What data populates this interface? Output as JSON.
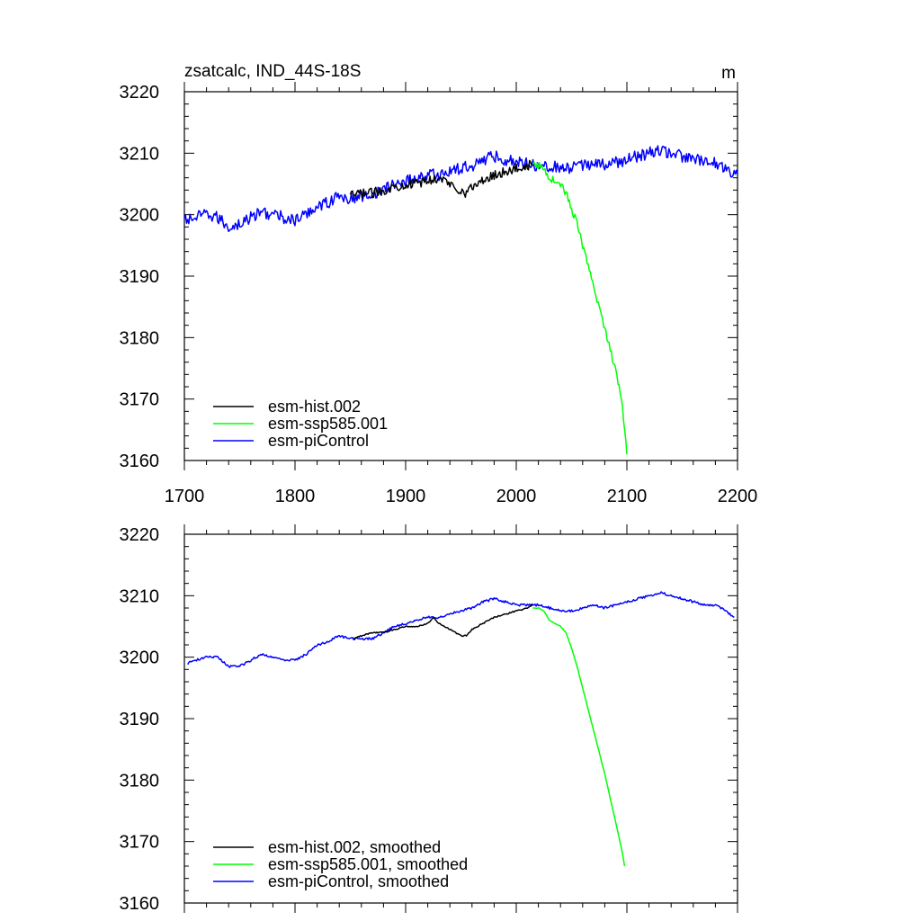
{
  "chart_data": [
    {
      "type": "line",
      "title": "zsatcalc, IND_44S-18S",
      "units": "m",
      "xlim": [
        1700,
        2200
      ],
      "ylim": [
        3160,
        3220
      ],
      "x_ticks": [
        1700,
        1800,
        1900,
        2000,
        2100,
        2200
      ],
      "y_ticks": [
        3160,
        3170,
        3180,
        3190,
        3200,
        3210,
        3220
      ],
      "show_x_tick_labels": true,
      "legend": "bottom-left",
      "grid": false,
      "series": [
        {
          "name": "esm-piControl",
          "color": "#0000ff",
          "x": [
            1700,
            1710,
            1720,
            1730,
            1740,
            1750,
            1760,
            1770,
            1780,
            1790,
            1800,
            1810,
            1820,
            1830,
            1840,
            1850,
            1860,
            1870,
            1880,
            1890,
            1900,
            1910,
            1920,
            1930,
            1940,
            1950,
            1960,
            1970,
            1980,
            1990,
            2000,
            2010,
            2020,
            2030,
            2040,
            2050,
            2060,
            2070,
            2080,
            2090,
            2100,
            2110,
            2120,
            2130,
            2140,
            2150,
            2160,
            2170,
            2180,
            2190,
            2200
          ],
          "y": [
            3199,
            3199.5,
            3200,
            3199.5,
            3198,
            3198.5,
            3199.5,
            3200.5,
            3200,
            3199.5,
            3199,
            3200,
            3201.5,
            3202,
            3203,
            3202.5,
            3203,
            3203.5,
            3204,
            3205,
            3205.5,
            3206,
            3206.5,
            3206.5,
            3207,
            3207.5,
            3208,
            3209,
            3209.5,
            3209,
            3208.5,
            3208.5,
            3208,
            3208,
            3207.5,
            3207.5,
            3208,
            3208.5,
            3208,
            3208.5,
            3209,
            3209.5,
            3210,
            3210.5,
            3210,
            3209.5,
            3209,
            3208.5,
            3208.5,
            3207.5,
            3206.5
          ],
          "noise": 1.0
        },
        {
          "name": "esm-hist.002",
          "color": "#000000",
          "x": [
            1850,
            1860,
            1870,
            1880,
            1890,
            1900,
            1910,
            1920,
            1930,
            1940,
            1950,
            1955,
            1960,
            1970,
            1980,
            1990,
            2000,
            2010,
            2015
          ],
          "y": [
            3203,
            3203.5,
            3203.5,
            3204,
            3204.5,
            3205,
            3205,
            3205.5,
            3206,
            3205,
            3204,
            3203.5,
            3204.5,
            3205.5,
            3206.5,
            3207,
            3207.5,
            3208,
            3208
          ],
          "noise": 0.8
        },
        {
          "name": "esm-ssp585.001",
          "color": "#00ff00",
          "x": [
            2015,
            2020,
            2025,
            2030,
            2035,
            2040,
            2045,
            2050,
            2055,
            2060,
            2065,
            2070,
            2075,
            2080,
            2085,
            2090,
            2095,
            2100
          ],
          "y": [
            3208,
            3208,
            3207.5,
            3206,
            3205.5,
            3205,
            3203.5,
            3201,
            3198.5,
            3195,
            3191.5,
            3188,
            3185,
            3181.5,
            3178,
            3174.5,
            3170.5,
            3161
          ],
          "noise": 0.6
        }
      ]
    },
    {
      "type": "line",
      "title": "",
      "units": "",
      "xlim": [
        1700,
        2200
      ],
      "ylim": [
        3160,
        3220
      ],
      "x_ticks": [
        1700,
        1800,
        1900,
        2000,
        2100,
        2200
      ],
      "y_ticks": [
        3160,
        3170,
        3180,
        3190,
        3200,
        3210,
        3220
      ],
      "show_x_tick_labels": false,
      "legend": "bottom-left",
      "grid": false,
      "series": [
        {
          "name": "esm-piControl, smoothed",
          "color": "#0000ff",
          "x": [
            1703,
            1710,
            1720,
            1730,
            1740,
            1750,
            1760,
            1770,
            1780,
            1790,
            1800,
            1810,
            1820,
            1830,
            1840,
            1850,
            1860,
            1870,
            1880,
            1890,
            1900,
            1910,
            1920,
            1930,
            1940,
            1950,
            1960,
            1970,
            1980,
            1990,
            2000,
            2010,
            2020,
            2030,
            2040,
            2050,
            2060,
            2070,
            2080,
            2090,
            2100,
            2110,
            2120,
            2130,
            2140,
            2150,
            2160,
            2170,
            2180,
            2190,
            2197
          ],
          "y": [
            3199,
            3199.5,
            3200,
            3200,
            3198.5,
            3198.5,
            3199.5,
            3200.5,
            3200,
            3199.5,
            3199.5,
            3200.5,
            3202,
            3202.5,
            3203.5,
            3203,
            3203,
            3203,
            3204,
            3205,
            3205.5,
            3206,
            3206.5,
            3206.5,
            3207,
            3207.5,
            3208,
            3209,
            3209.5,
            3209,
            3208.5,
            3208.5,
            3208.5,
            3208,
            3207.5,
            3207.5,
            3208,
            3208.5,
            3208,
            3208.5,
            3209,
            3209.5,
            3210,
            3210.5,
            3210,
            3209.5,
            3209,
            3208.5,
            3208.5,
            3207.5,
            3206.5
          ],
          "noise": 0.2
        },
        {
          "name": "esm-hist.002, smoothed",
          "color": "#000000",
          "x": [
            1853,
            1860,
            1870,
            1880,
            1890,
            1900,
            1910,
            1920,
            1925,
            1930,
            1940,
            1950,
            1955,
            1960,
            1970,
            1980,
            1990,
            2000,
            2010,
            2015
          ],
          "y": [
            3203,
            3203.5,
            3204,
            3204,
            3204.5,
            3205,
            3205,
            3205.5,
            3206.5,
            3205.5,
            3204.5,
            3203.5,
            3203.5,
            3204.5,
            3205.5,
            3206.5,
            3207,
            3207.5,
            3208,
            3208.5
          ],
          "noise": 0.1
        },
        {
          "name": "esm-ssp585.001, smoothed",
          "color": "#00ff00",
          "x": [
            2015,
            2020,
            2025,
            2030,
            2035,
            2040,
            2045,
            2050,
            2055,
            2060,
            2065,
            2070,
            2075,
            2080,
            2085,
            2090,
            2095,
            2098
          ],
          "y": [
            3208,
            3208,
            3207.5,
            3206,
            3205.5,
            3205,
            3204,
            3201.5,
            3198.5,
            3195,
            3191.5,
            3188,
            3184.5,
            3181,
            3177,
            3173,
            3169,
            3166
          ],
          "noise": 0.05
        }
      ]
    }
  ]
}
